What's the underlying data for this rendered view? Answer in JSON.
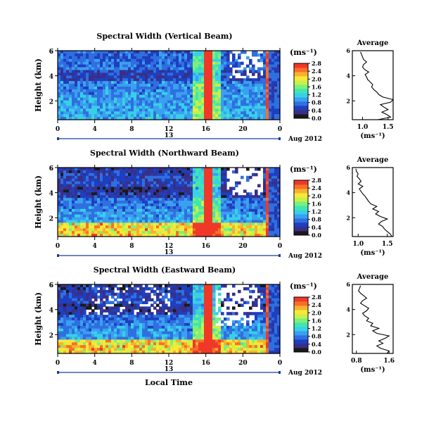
{
  "figure": {
    "xaxis_label": "Local Time",
    "date_label": "Aug 2012",
    "colorbar_unit": "(ms⁻¹)",
    "ylabel": "Height (km)",
    "avg_title": "Average",
    "avg_xlabel": "(ms⁻¹)"
  },
  "chart_data": [
    {
      "type": "heatmap",
      "title": "Spectral Width (Vertical Beam)",
      "xlabel": "Local Time",
      "ylabel": "Height (km)",
      "x_ticks": [
        "0",
        "4",
        "8",
        "12",
        "16",
        "20",
        "0"
      ],
      "day_marker": "13",
      "y_ticks": [
        "2",
        "4",
        "6"
      ],
      "colorbar": {
        "label": "(ms⁻¹)",
        "ticks": [
          "0.0",
          "0.4",
          "0.8",
          "1.2",
          "1.6",
          "2.0",
          "2.4",
          "2.8"
        ],
        "range": [
          0,
          2.8
        ]
      },
      "colors": [
        "#1a1a1a",
        "#3a2f86",
        "#1e3fbf",
        "#2f6fe0",
        "#3aa0f0",
        "#38d0e8",
        "#40e6b0",
        "#7cf07a",
        "#c8f04a",
        "#f8e838",
        "#f8b030",
        "#f87028",
        "#f03828"
      ],
      "average_profile": {
        "title": "Average",
        "xlabel": "(ms⁻¹)",
        "x_ticks": [
          "1.0",
          "1.5"
        ],
        "xlim": [
          0.8,
          1.6
        ],
        "y_ticks": [
          "2",
          "4",
          "6"
        ],
        "ylim": [
          0.5,
          6
        ],
        "height_km": [
          0.5,
          0.7,
          0.9,
          1.1,
          1.3,
          1.5,
          1.7,
          1.9,
          2.1,
          2.3,
          2.5,
          2.7,
          2.9,
          3.1,
          3.3,
          3.5,
          3.7,
          3.9,
          4.1,
          4.3,
          4.5,
          4.7,
          4.9,
          5.1,
          5.3,
          5.5,
          5.7,
          5.9
        ],
        "width_ms": [
          1.3,
          1.55,
          1.48,
          1.38,
          1.5,
          1.42,
          1.35,
          1.55,
          1.6,
          1.4,
          1.32,
          1.28,
          1.22,
          1.18,
          1.2,
          1.15,
          1.1,
          1.08,
          1.05,
          1.12,
          1.04,
          1.0,
          1.02,
          1.08,
          1.02,
          1.0,
          0.98,
          0.96
        ]
      }
    },
    {
      "type": "heatmap",
      "title": "Spectral Width (Northward Beam)",
      "xlabel": "Local Time",
      "ylabel": "Height (km)",
      "x_ticks": [
        "0",
        "4",
        "8",
        "12",
        "16",
        "20",
        "0"
      ],
      "day_marker": "13",
      "y_ticks": [
        "2",
        "4",
        "6"
      ],
      "colorbar": {
        "label": "(ms⁻¹)",
        "ticks": [
          "0.0",
          "0.4",
          "0.8",
          "1.2",
          "1.6",
          "2.0",
          "2.4",
          "2.8"
        ],
        "range": [
          0,
          2.8
        ]
      },
      "colors": [
        "#1a1a1a",
        "#3a2f86",
        "#1e3fbf",
        "#2f6fe0",
        "#3aa0f0",
        "#38d0e8",
        "#40e6b0",
        "#7cf07a",
        "#c8f04a",
        "#f8e838",
        "#f8b030",
        "#f87028",
        "#f03828"
      ],
      "average_profile": {
        "title": "Average",
        "xlabel": "(ms⁻¹)",
        "x_ticks": [
          "1.0",
          "1.5"
        ],
        "xlim": [
          0.9,
          1.6
        ],
        "y_ticks": [
          "2",
          "4",
          "6"
        ],
        "ylim": [
          0.5,
          6
        ],
        "height_km": [
          0.5,
          0.7,
          0.9,
          1.1,
          1.3,
          1.5,
          1.7,
          1.9,
          2.1,
          2.3,
          2.5,
          2.7,
          2.9,
          3.1,
          3.3,
          3.5,
          3.7,
          3.9,
          4.1,
          4.3,
          4.5,
          4.7,
          4.9,
          5.1,
          5.3,
          5.5,
          5.7,
          5.9
        ],
        "width_ms": [
          1.58,
          1.55,
          1.5,
          1.45,
          1.42,
          1.35,
          1.4,
          1.5,
          1.38,
          1.3,
          1.35,
          1.25,
          1.32,
          1.22,
          1.18,
          1.15,
          1.12,
          1.08,
          1.05,
          1.02,
          1.08,
          1.0,
          1.05,
          1.02,
          0.98,
          1.0,
          0.97,
          0.96
        ]
      }
    },
    {
      "type": "heatmap",
      "title": "Spectral Width (Eastward Beam)",
      "xlabel": "Local Time",
      "ylabel": "Height (km)",
      "x_ticks": [
        "0",
        "4",
        "8",
        "12",
        "16",
        "20",
        "0"
      ],
      "day_marker": "13",
      "y_ticks": [
        "2",
        "4",
        "6"
      ],
      "colorbar": {
        "label": "(ms⁻¹)",
        "ticks": [
          "0.0",
          "0.4",
          "0.8",
          "1.2",
          "1.6",
          "2.0",
          "2.4",
          "2.8"
        ],
        "range": [
          0,
          2.8
        ]
      },
      "colors": [
        "#1a1a1a",
        "#3a2f86",
        "#1e3fbf",
        "#2f6fe0",
        "#3aa0f0",
        "#38d0e8",
        "#40e6b0",
        "#7cf07a",
        "#c8f04a",
        "#f8e838",
        "#f8b030",
        "#f87028",
        "#f03828"
      ],
      "average_profile": {
        "title": "Average",
        "xlabel": "(ms⁻¹)",
        "x_ticks": [
          "0.8",
          "1.6"
        ],
        "xlim": [
          0.7,
          1.7
        ],
        "y_ticks": [
          "2",
          "4",
          "6"
        ],
        "ylim": [
          0.5,
          6
        ],
        "height_km": [
          0.5,
          0.7,
          0.9,
          1.1,
          1.3,
          1.5,
          1.7,
          1.9,
          2.1,
          2.3,
          2.5,
          2.7,
          2.9,
          3.1,
          3.3,
          3.5,
          3.7,
          3.9,
          4.1,
          4.3,
          4.5,
          4.7,
          4.9,
          5.1,
          5.3,
          5.5,
          5.7,
          5.9
        ],
        "width_ms": [
          1.55,
          1.6,
          1.4,
          1.3,
          1.45,
          1.35,
          1.5,
          1.6,
          1.3,
          1.2,
          1.35,
          1.15,
          1.2,
          1.05,
          1.1,
          1.0,
          0.95,
          1.05,
          1.1,
          1.0,
          0.9,
          0.95,
          1.05,
          0.98,
          0.9,
          0.85,
          0.88,
          0.9
        ]
      }
    }
  ]
}
